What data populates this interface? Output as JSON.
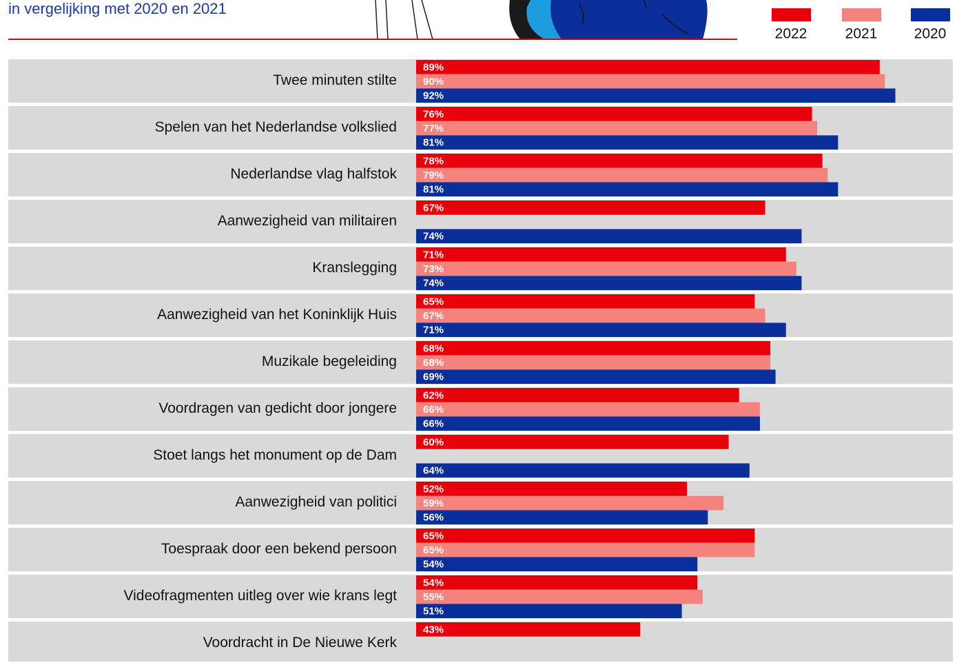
{
  "chart_data": {
    "type": "bar",
    "orientation": "horizontal",
    "subtitle": "in vergelijking met 2020 en 2021",
    "categories": [
      "Twee minuten stilte",
      "Spelen van het Nederlandse volkslied",
      "Nederlandse vlag halfstok",
      "Aanwezigheid van militairen",
      "Kranslegging",
      "Aanwezigheid van het Koninklijk Huis",
      "Muzikale begeleiding",
      "Voordragen van gedicht door jongere",
      "Stoet langs het monument op de Dam",
      "Aanwezigheid van politici",
      "Toespraak door een bekend persoon",
      "Videofragmenten uitleg over wie krans legt",
      "Voordracht in De Nieuwe Kerk"
    ],
    "xlim": [
      0,
      100
    ],
    "series": [
      {
        "name": "2022",
        "color": "#e8000b",
        "values": [
          89,
          76,
          78,
          67,
          71,
          65,
          68,
          62,
          60,
          52,
          65,
          54,
          43
        ],
        "value_labels": [
          "89%",
          "76%",
          "78%",
          "67%",
          "71%",
          "65%",
          "68%",
          "62%",
          "60%",
          "52%",
          "65%",
          "54%",
          "43%"
        ]
      },
      {
        "name": "2021",
        "color": "#f4837d",
        "values": [
          90,
          77,
          79,
          null,
          73,
          67,
          68,
          66,
          null,
          59,
          65,
          55,
          null
        ],
        "value_labels": [
          "90%",
          "77%",
          "79%",
          null,
          "73%",
          "67%",
          "68%",
          "66%",
          null,
          "59%",
          "65%",
          "55%",
          null
        ]
      },
      {
        "name": "2020",
        "color": "#0a2f9b",
        "values": [
          92,
          81,
          81,
          74,
          74,
          71,
          69,
          66,
          64,
          56,
          54,
          51,
          null
        ],
        "value_labels": [
          "92%",
          "81%",
          "81%",
          "74%",
          "74%",
          "71%",
          "69%",
          "66%",
          "64%",
          "56%",
          "54%",
          "51%",
          null
        ]
      }
    ]
  }
}
